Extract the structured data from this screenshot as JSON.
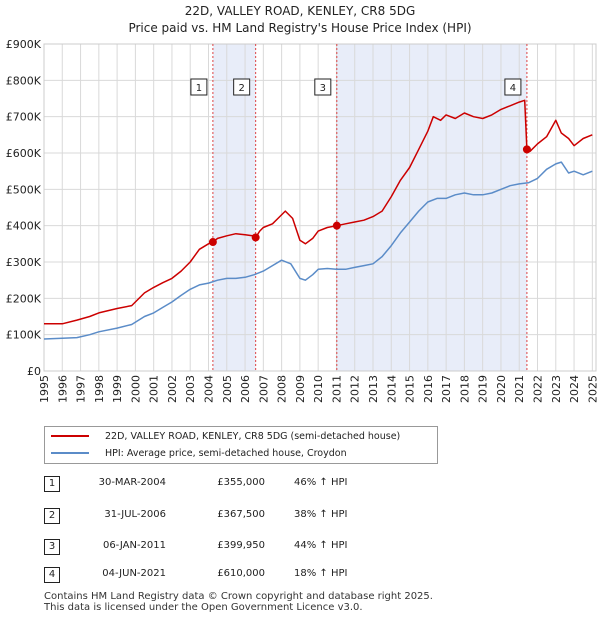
{
  "header": {
    "title": "22D, VALLEY ROAD, KENLEY, CR8 5DG",
    "subtitle": "Price paid vs. HM Land Registry's House Price Index (HPI)"
  },
  "legend": {
    "items": [
      {
        "label": "22D, VALLEY ROAD, KENLEY, CR8 5DG (semi-detached house)",
        "color": "#cc0000"
      },
      {
        "label": "HPI: Average price, semi-detached house, Croydon",
        "color": "#5b8cc8"
      }
    ]
  },
  "transactions": [
    {
      "num": "1",
      "date": "30-MAR-2004",
      "price": "£355,000",
      "hpi": "46% ↑ HPI"
    },
    {
      "num": "2",
      "date": "31-JUL-2006",
      "price": "£367,500",
      "hpi": "38% ↑ HPI"
    },
    {
      "num": "3",
      "date": "06-JAN-2011",
      "price": "£399,950",
      "hpi": "44% ↑ HPI"
    },
    {
      "num": "4",
      "date": "04-JUN-2021",
      "price": "£610,000",
      "hpi": "18% ↑ HPI"
    }
  ],
  "footer": {
    "line1": "Contains HM Land Registry data © Crown copyright and database right 2025.",
    "line2": "This data is licensed under the Open Government Licence v3.0."
  },
  "chart_data": {
    "type": "line",
    "title": "22D, VALLEY ROAD, KENLEY, CR8 5DG",
    "subtitle": "Price paid vs. HM Land Registry's House Price Index (HPI)",
    "xlim": [
      1995,
      2025.2
    ],
    "ylim": [
      0,
      900000
    ],
    "x_ticks": [
      "1995",
      "1996",
      "1997",
      "1998",
      "1999",
      "2000",
      "2001",
      "2002",
      "2003",
      "2004",
      "2005",
      "2006",
      "2007",
      "2008",
      "2009",
      "2010",
      "2011",
      "2012",
      "2013",
      "2014",
      "2015",
      "2016",
      "2017",
      "2018",
      "2019",
      "2020",
      "2021",
      "2022",
      "2023",
      "2024",
      "2025"
    ],
    "y_ticks": [
      {
        "value": 0,
        "label": "£0"
      },
      {
        "value": 100000,
        "label": "£100K"
      },
      {
        "value": 200000,
        "label": "£200K"
      },
      {
        "value": 300000,
        "label": "£300K"
      },
      {
        "value": 400000,
        "label": "£400K"
      },
      {
        "value": 500000,
        "label": "£500K"
      },
      {
        "value": 600000,
        "label": "£600K"
      },
      {
        "value": 700000,
        "label": "£700K"
      },
      {
        "value": 800000,
        "label": "£800K"
      },
      {
        "value": 900000,
        "label": "£900K"
      }
    ],
    "shaded_periods": [
      [
        2004.24,
        2006.58
      ],
      [
        2011.02,
        2021.42
      ]
    ],
    "series": [
      {
        "name": "22D, VALLEY ROAD, KENLEY, CR8 5DG (semi-detached house)",
        "color": "#cc0000",
        "x": [
          1995,
          1996,
          1996.8,
          1997.5,
          1998,
          1999,
          1999.8,
          2000.5,
          2001,
          2001.5,
          2002,
          2002.5,
          2003,
          2003.5,
          2004,
          2004.24,
          2004.5,
          2005,
          2005.5,
          2006,
          2006.4,
          2006.58,
          2006.8,
          2007,
          2007.5,
          2007.8,
          2008.2,
          2008.6,
          2009,
          2009.3,
          2009.7,
          2010,
          2010.5,
          2011.02,
          2011.5,
          2012,
          2012.5,
          2013,
          2013.5,
          2014,
          2014.5,
          2015,
          2015.5,
          2016,
          2016.3,
          2016.7,
          2017,
          2017.5,
          2018,
          2018.5,
          2019,
          2019.5,
          2020,
          2020.5,
          2021,
          2021.3,
          2021.42,
          2021.6,
          2022,
          2022.5,
          2023,
          2023.3,
          2023.7,
          2024,
          2024.5,
          2025
        ],
        "values": [
          130000,
          130000,
          140000,
          150000,
          160000,
          172000,
          180000,
          215000,
          230000,
          243000,
          255000,
          275000,
          300000,
          335000,
          350000,
          355000,
          365000,
          372000,
          378000,
          375000,
          372000,
          367500,
          385000,
          395000,
          405000,
          420000,
          440000,
          420000,
          360000,
          350000,
          365000,
          385000,
          395000,
          399950,
          405000,
          410000,
          415000,
          425000,
          440000,
          480000,
          525000,
          560000,
          610000,
          660000,
          700000,
          690000,
          705000,
          695000,
          710000,
          700000,
          695000,
          705000,
          720000,
          730000,
          740000,
          745000,
          610000,
          605000,
          625000,
          645000,
          690000,
          655000,
          640000,
          620000,
          640000,
          650000
        ]
      },
      {
        "name": "HPI: Average price, semi-detached house, Croydon",
        "color": "#5b8cc8",
        "x": [
          1995,
          1996,
          1996.8,
          1997.5,
          1998,
          1999,
          1999.8,
          2000.5,
          2001,
          2001.5,
          2002,
          2002.5,
          2003,
          2003.5,
          2004,
          2004.5,
          2005,
          2005.5,
          2006,
          2006.5,
          2007,
          2007.5,
          2008,
          2008.5,
          2009,
          2009.3,
          2009.7,
          2010,
          2010.5,
          2011,
          2011.5,
          2012,
          2012.5,
          2013,
          2013.5,
          2014,
          2014.5,
          2015,
          2015.5,
          2016,
          2016.5,
          2017,
          2017.5,
          2018,
          2018.5,
          2019,
          2019.5,
          2020,
          2020.5,
          2021,
          2021.5,
          2022,
          2022.5,
          2023,
          2023.3,
          2023.7,
          2024,
          2024.5,
          2025
        ],
        "values": [
          88000,
          90000,
          92000,
          100000,
          108000,
          118000,
          128000,
          150000,
          160000,
          175000,
          190000,
          208000,
          225000,
          237000,
          242000,
          250000,
          255000,
          255000,
          258000,
          265000,
          275000,
          290000,
          305000,
          295000,
          255000,
          250000,
          265000,
          280000,
          282000,
          280000,
          280000,
          285000,
          290000,
          295000,
          315000,
          345000,
          380000,
          410000,
          440000,
          465000,
          475000,
          475000,
          485000,
          490000,
          485000,
          485000,
          490000,
          500000,
          510000,
          515000,
          518000,
          530000,
          555000,
          570000,
          575000,
          545000,
          550000,
          540000,
          550000
        ]
      }
    ],
    "markers": [
      {
        "label": "1",
        "x": 2004.24,
        "value": 355000
      },
      {
        "label": "2",
        "x": 2006.58,
        "value": 367500
      },
      {
        "label": "3",
        "x": 2011.02,
        "value": 399950
      },
      {
        "label": "4",
        "x": 2021.42,
        "value": 610000
      }
    ]
  }
}
